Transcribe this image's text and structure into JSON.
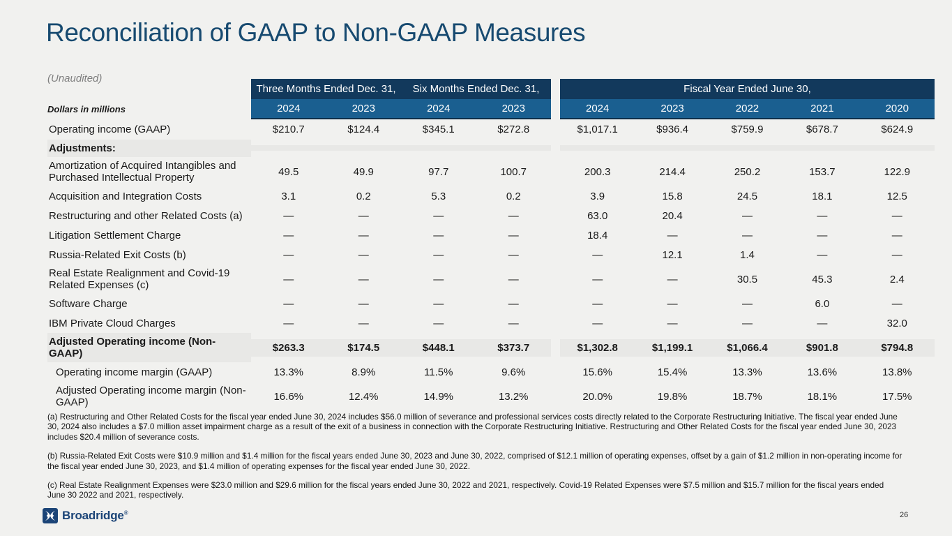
{
  "slide": {
    "title": "Reconciliation of GAAP to Non-GAAP Measures",
    "unaudited": "(Unaudited)",
    "units": "Dollars in millions",
    "page_number": "26"
  },
  "logo": {
    "text": "Broadridge",
    "registered_mark": "®"
  },
  "colors": {
    "background": "#F1F1EF",
    "title_navy": "#174A70",
    "header_band_dark": "#12395C",
    "header_band_blue": "#1A5F90",
    "band_bottom_border": "#0D2F4B",
    "row_highlight_gray": "#E8E8E6",
    "logo_navy": "#1B4477"
  },
  "table": {
    "group_headers": [
      {
        "label": "Three Months Ended Dec. 31,",
        "span": 2
      },
      {
        "label": "Six Months Ended Dec. 31,",
        "span": 2
      },
      {
        "label": "Fiscal Year Ended June 30,",
        "span": 5
      }
    ],
    "year_headers_left": [
      "2024",
      "2023",
      "2024",
      "2023"
    ],
    "year_headers_right": [
      "2024",
      "2023",
      "2022",
      "2021",
      "2020"
    ],
    "rows": [
      {
        "label": "Operating income (GAAP)",
        "style": "normal",
        "left": [
          "$210.7",
          "$124.4",
          "$345.1",
          "$272.8"
        ],
        "right": [
          "$1,017.1",
          "$936.4",
          "$759.9",
          "$678.7",
          "$624.9"
        ]
      },
      {
        "label": "Adjustments:",
        "style": "section",
        "left": [
          "",
          "",
          "",
          ""
        ],
        "right": [
          "",
          "",
          "",
          "",
          ""
        ]
      },
      {
        "label": "Amortization of Acquired Intangibles and Purchased Intellectual Property",
        "style": "normal",
        "left": [
          "49.5",
          "49.9",
          "97.7",
          "100.7"
        ],
        "right": [
          "200.3",
          "214.4",
          "250.2",
          "153.7",
          "122.9"
        ]
      },
      {
        "label": "Acquisition and Integration Costs",
        "style": "normal",
        "left": [
          "3.1",
          "0.2",
          "5.3",
          "0.2"
        ],
        "right": [
          "3.9",
          "15.8",
          "24.5",
          "18.1",
          "12.5"
        ]
      },
      {
        "label": "Restructuring and other Related Costs (a)",
        "style": "normal",
        "left": [
          "—",
          "—",
          "—",
          "—"
        ],
        "right": [
          "63.0",
          "20.4",
          "—",
          "—",
          "—"
        ]
      },
      {
        "label": "Litigation Settlement Charge",
        "style": "normal",
        "left": [
          "—",
          "—",
          "—",
          "—"
        ],
        "right": [
          "18.4",
          "—",
          "—",
          "—",
          "—"
        ]
      },
      {
        "label": "Russia-Related Exit Costs (b)",
        "style": "normal",
        "left": [
          "—",
          "—",
          "—",
          "—"
        ],
        "right": [
          "—",
          "12.1",
          "1.4",
          "—",
          "—"
        ]
      },
      {
        "label": "Real Estate Realignment and Covid-19 Related Expenses (c)",
        "style": "normal",
        "left": [
          "—",
          "—",
          "—",
          "—"
        ],
        "right": [
          "—",
          "—",
          "30.5",
          "45.3",
          "2.4"
        ]
      },
      {
        "label": "Software Charge",
        "style": "normal",
        "left": [
          "—",
          "—",
          "—",
          "—"
        ],
        "right": [
          "—",
          "—",
          "—",
          "6.0",
          "—"
        ]
      },
      {
        "label": "IBM Private Cloud Charges",
        "style": "normal",
        "left": [
          "—",
          "—",
          "—",
          "—"
        ],
        "right": [
          "—",
          "—",
          "—",
          "—",
          "32.0"
        ]
      },
      {
        "label": "Adjusted Operating income (Non-GAAP)",
        "style": "total",
        "left": [
          "$263.3",
          "$174.5",
          "$448.1",
          "$373.7"
        ],
        "right": [
          "$1,302.8",
          "$1,199.1",
          "$1,066.4",
          "$901.8",
          "$794.8"
        ]
      },
      {
        "label": "Operating income margin (GAAP)",
        "style": "indent",
        "left": [
          "13.3%",
          "8.9%",
          "11.5%",
          "9.6%"
        ],
        "right": [
          "15.6%",
          "15.4%",
          "13.3%",
          "13.6%",
          "13.8%"
        ]
      },
      {
        "label": "Adjusted Operating income margin (Non-GAAP)",
        "style": "indent",
        "left": [
          "16.6%",
          "12.4%",
          "14.9%",
          "13.2%"
        ],
        "right": [
          "20.0%",
          "19.8%",
          "18.7%",
          "18.1%",
          "17.5%"
        ]
      }
    ]
  },
  "footnotes": [
    "(a) Restructuring and Other Related Costs for the fiscal year ended June 30, 2024 includes $56.0 million of severance and professional services costs directly related to the Corporate Restructuring Initiative. The fiscal year ended June 30, 2024 also includes a $7.0 million asset impairment charge as a result of the exit of a business in connection with the Corporate Restructuring Initiative. Restructuring and Other Related Costs for the fiscal year ended June 30, 2023 includes $20.4 million of severance costs.",
    "(b) Russia-Related Exit Costs were $10.9 million and $1.4 million for the fiscal years ended June 30, 2023 and June 30, 2022, comprised of $12.1 million of operating expenses, offset by a gain of $1.2 million in non-operating income for the fiscal year ended June 30, 2023, and $1.4 million of operating expenses for the fiscal year ended June 30, 2022.",
    "(c) Real Estate Realignment Expenses were $23.0 million and $29.6 million for the fiscal years ended June 30, 2022 and 2021, respectively. Covid-19 Related Expenses were $7.5 million and $15.7 million for the fiscal years ended June 30 2022 and 2021, respectively."
  ]
}
